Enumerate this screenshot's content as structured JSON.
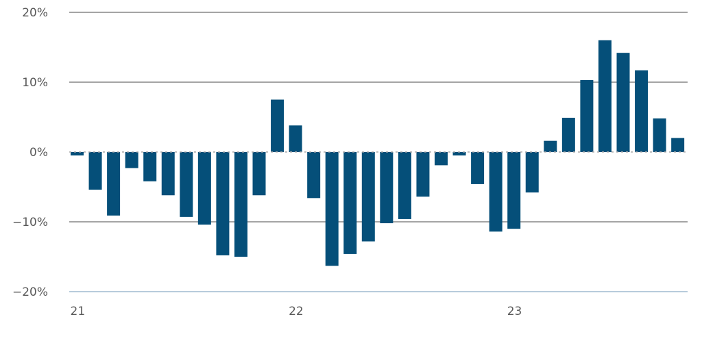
{
  "chart_data": {
    "type": "bar",
    "title": "",
    "xlabel": "",
    "ylabel": "",
    "ylim": [
      -20,
      20
    ],
    "yticks": [
      20,
      10,
      0,
      -10,
      -20
    ],
    "ytick_labels": [
      "20%",
      "10%",
      "0%",
      "−10%",
      "−20%"
    ],
    "xtick_labels": [
      {
        "label": "21",
        "index": 0
      },
      {
        "label": "22",
        "index": 12
      },
      {
        "label": "23",
        "index": 24
      }
    ],
    "grid": true,
    "colors": {
      "bar": "#054f79",
      "grid": "#6e6e6e",
      "zero_line": "#aaaaaa",
      "baseline": "#b7cbdc"
    },
    "values": [
      -0.5,
      -5.4,
      -9.1,
      -2.3,
      -4.2,
      -6.2,
      -9.3,
      -10.4,
      -14.8,
      -15.0,
      -6.2,
      7.5,
      3.8,
      -6.6,
      -16.3,
      -14.6,
      -12.8,
      -10.2,
      -9.6,
      -6.4,
      -1.9,
      -0.5,
      -4.6,
      -11.4,
      -11.0,
      -5.8,
      1.6,
      4.9,
      10.3,
      16.0,
      14.2,
      11.7,
      4.8,
      2.0
    ]
  }
}
